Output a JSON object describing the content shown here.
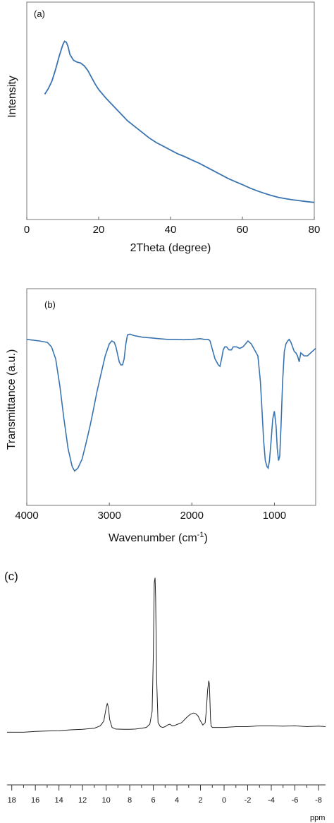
{
  "chart_data": [
    {
      "type": "line",
      "panel_label": "(a)",
      "xlabel": "2Theta (degree)",
      "ylabel": "Intensity",
      "xlim": [
        0,
        80
      ],
      "ylim": [
        0,
        1
      ],
      "x_ticks": [
        "0",
        "20",
        "40",
        "60",
        "80"
      ],
      "color": "#3a74b0",
      "series": [
        {
          "x": [
            5,
            6,
            7,
            8,
            9,
            10,
            10.5,
            11,
            11.5,
            12,
            13,
            14,
            15,
            16,
            17,
            18,
            19,
            20,
            22,
            24,
            26,
            28,
            30,
            32,
            34,
            36,
            38,
            40,
            42,
            44,
            46,
            48,
            50,
            52,
            54,
            56,
            58,
            60,
            62,
            64,
            66,
            68,
            70,
            72,
            74,
            76,
            78,
            80
          ],
          "y": [
            0.61,
            0.64,
            0.68,
            0.74,
            0.81,
            0.87,
            0.89,
            0.885,
            0.86,
            0.82,
            0.79,
            0.78,
            0.775,
            0.76,
            0.735,
            0.7,
            0.665,
            0.635,
            0.59,
            0.55,
            0.51,
            0.47,
            0.44,
            0.41,
            0.38,
            0.355,
            0.335,
            0.315,
            0.295,
            0.28,
            0.262,
            0.245,
            0.225,
            0.205,
            0.185,
            0.165,
            0.148,
            0.132,
            0.115,
            0.1,
            0.087,
            0.075,
            0.065,
            0.058,
            0.052,
            0.047,
            0.042,
            0.038
          ]
        }
      ]
    },
    {
      "type": "line",
      "panel_label": "(b)",
      "xlabel": "Wavenumber (cm",
      "xlabel_sup": "-1",
      "xlabel_close": ")",
      "ylabel": "Transmittance (a.u.)",
      "xlim": [
        4000,
        500
      ],
      "ylim": [
        0,
        1
      ],
      "x_ticks": [
        "4000",
        "3000",
        "2000",
        "1000"
      ],
      "x_tick_values": [
        4000,
        3000,
        2000,
        1000
      ],
      "color": "#3a74b0",
      "series": [
        {
          "x": [
            4000,
            3850,
            3750,
            3700,
            3650,
            3600,
            3550,
            3500,
            3450,
            3420,
            3380,
            3330,
            3280,
            3230,
            3200,
            3150,
            3100,
            3050,
            3000,
            2970,
            2940,
            2920,
            2900,
            2880,
            2860,
            2840,
            2820,
            2800,
            2780,
            2750,
            2700,
            2600,
            2500,
            2400,
            2300,
            2200,
            2100,
            2000,
            1950,
            1900,
            1850,
            1800,
            1780,
            1760,
            1720,
            1680,
            1660,
            1640,
            1620,
            1600,
            1580,
            1550,
            1520,
            1500,
            1460,
            1420,
            1380,
            1350,
            1320,
            1280,
            1250,
            1200,
            1170,
            1150,
            1130,
            1110,
            1090,
            1075,
            1060,
            1040,
            1020,
            1000,
            980,
            965,
            950,
            935,
            920,
            900,
            880,
            860,
            840,
            820,
            800,
            780,
            760,
            740,
            720,
            700,
            680,
            660,
            640,
            600,
            560,
            520,
            500
          ],
          "y": [
            0.93,
            0.92,
            0.91,
            0.88,
            0.8,
            0.62,
            0.4,
            0.2,
            0.08,
            0.05,
            0.07,
            0.13,
            0.24,
            0.36,
            0.44,
            0.58,
            0.7,
            0.82,
            0.9,
            0.92,
            0.91,
            0.88,
            0.83,
            0.78,
            0.76,
            0.76,
            0.8,
            0.9,
            0.96,
            0.965,
            0.955,
            0.945,
            0.94,
            0.935,
            0.93,
            0.93,
            0.928,
            0.93,
            0.932,
            0.935,
            0.93,
            0.93,
            0.92,
            0.88,
            0.8,
            0.76,
            0.75,
            0.8,
            0.86,
            0.88,
            0.88,
            0.86,
            0.86,
            0.88,
            0.88,
            0.87,
            0.88,
            0.9,
            0.92,
            0.9,
            0.87,
            0.82,
            0.65,
            0.45,
            0.25,
            0.12,
            0.08,
            0.07,
            0.12,
            0.25,
            0.4,
            0.45,
            0.35,
            0.2,
            0.12,
            0.15,
            0.35,
            0.65,
            0.85,
            0.9,
            0.92,
            0.93,
            0.91,
            0.88,
            0.85,
            0.84,
            0.82,
            0.78,
            0.84,
            0.83,
            0.82,
            0.82,
            0.84,
            0.86,
            0.87
          ]
        }
      ]
    },
    {
      "type": "line",
      "panel_label": "(c)",
      "xlabel": "ppm",
      "xlim": [
        18.4,
        -8.6
      ],
      "x_ticks": [
        "18",
        "16",
        "14",
        "12",
        "10",
        "8",
        "6",
        "4",
        "2",
        "0",
        "-2",
        "-4",
        "-6",
        "-8"
      ],
      "x_tick_values": [
        18,
        16,
        14,
        12,
        10,
        8,
        6,
        4,
        2,
        0,
        -2,
        -4,
        -6,
        -8
      ],
      "color": "#222222",
      "series": [
        {
          "x": [
            18.4,
            17,
            16,
            15,
            14,
            13,
            12,
            11,
            10.5,
            10.2,
            10.0,
            9.9,
            9.8,
            9.7,
            9.5,
            9.2,
            8.5,
            8,
            7.5,
            7,
            6.6,
            6.3,
            6.1,
            6.0,
            5.92,
            5.85,
            5.8,
            5.72,
            5.6,
            5.4,
            5.2,
            5.0,
            4.8,
            4.6,
            4.4,
            4.2,
            4.0,
            3.6,
            3.2,
            2.9,
            2.6,
            2.4,
            2.2,
            2.0,
            1.8,
            1.6,
            1.5,
            1.4,
            1.3,
            1.25,
            1.2,
            1.15,
            1.1,
            1.0,
            0.8,
            0.4,
            0,
            -1,
            -2,
            -3,
            -4,
            -5,
            -6,
            -7,
            -8,
            -8.6
          ],
          "y": [
            0.02,
            0.02,
            0.025,
            0.028,
            0.03,
            0.035,
            0.038,
            0.045,
            0.06,
            0.09,
            0.17,
            0.2,
            0.17,
            0.1,
            0.05,
            0.04,
            0.038,
            0.038,
            0.04,
            0.045,
            0.05,
            0.07,
            0.15,
            0.5,
            0.95,
            0.98,
            0.85,
            0.35,
            0.08,
            0.055,
            0.05,
            0.055,
            0.065,
            0.07,
            0.06,
            0.062,
            0.068,
            0.08,
            0.11,
            0.13,
            0.14,
            0.135,
            0.12,
            0.09,
            0.065,
            0.08,
            0.16,
            0.28,
            0.34,
            0.32,
            0.22,
            0.1,
            0.06,
            0.05,
            0.05,
            0.05,
            0.05,
            0.055,
            0.055,
            0.06,
            0.06,
            0.058,
            0.06,
            0.055,
            0.058,
            0.055
          ]
        }
      ]
    }
  ]
}
